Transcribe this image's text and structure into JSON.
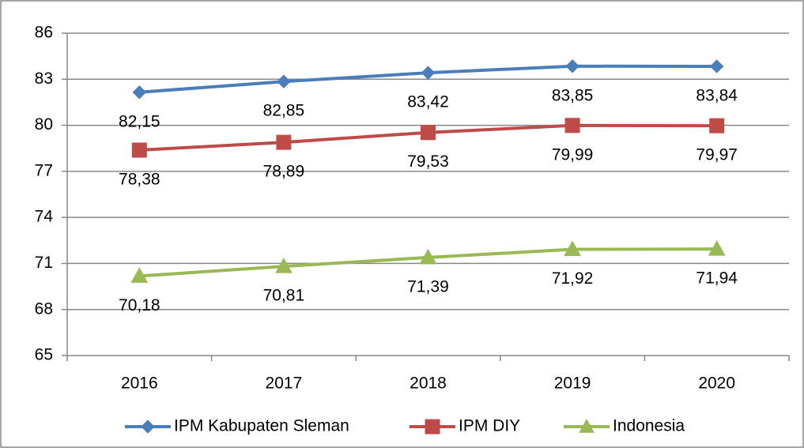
{
  "chart_data": {
    "type": "line",
    "categories": [
      "2016",
      "2017",
      "2018",
      "2019",
      "2020"
    ],
    "series": [
      {
        "name": "IPM Kabupaten Sleman",
        "color": "#4a7ebb",
        "marker": "diamond",
        "values": [
          82.15,
          82.85,
          83.42,
          83.85,
          83.84
        ],
        "value_labels": [
          "82,15",
          "82,85",
          "83,42",
          "83,85",
          "83,84"
        ]
      },
      {
        "name": "IPM DIY",
        "color": "#be4b48",
        "marker": "square",
        "values": [
          78.38,
          78.89,
          79.53,
          79.99,
          79.97
        ],
        "value_labels": [
          "78,38",
          "78,89",
          "79,53",
          "79,99",
          "79,97"
        ]
      },
      {
        "name": "Indonesia",
        "color": "#98b954",
        "marker": "triangle",
        "values": [
          70.18,
          70.81,
          71.39,
          71.92,
          71.94
        ],
        "value_labels": [
          "70,18",
          "70,81",
          "71,39",
          "71,92",
          "71,94"
        ]
      }
    ],
    "ylim": [
      65,
      86
    ],
    "yticks": [
      65,
      68,
      71,
      74,
      77,
      80,
      83,
      86
    ],
    "grid": true,
    "legend": "bottom"
  }
}
